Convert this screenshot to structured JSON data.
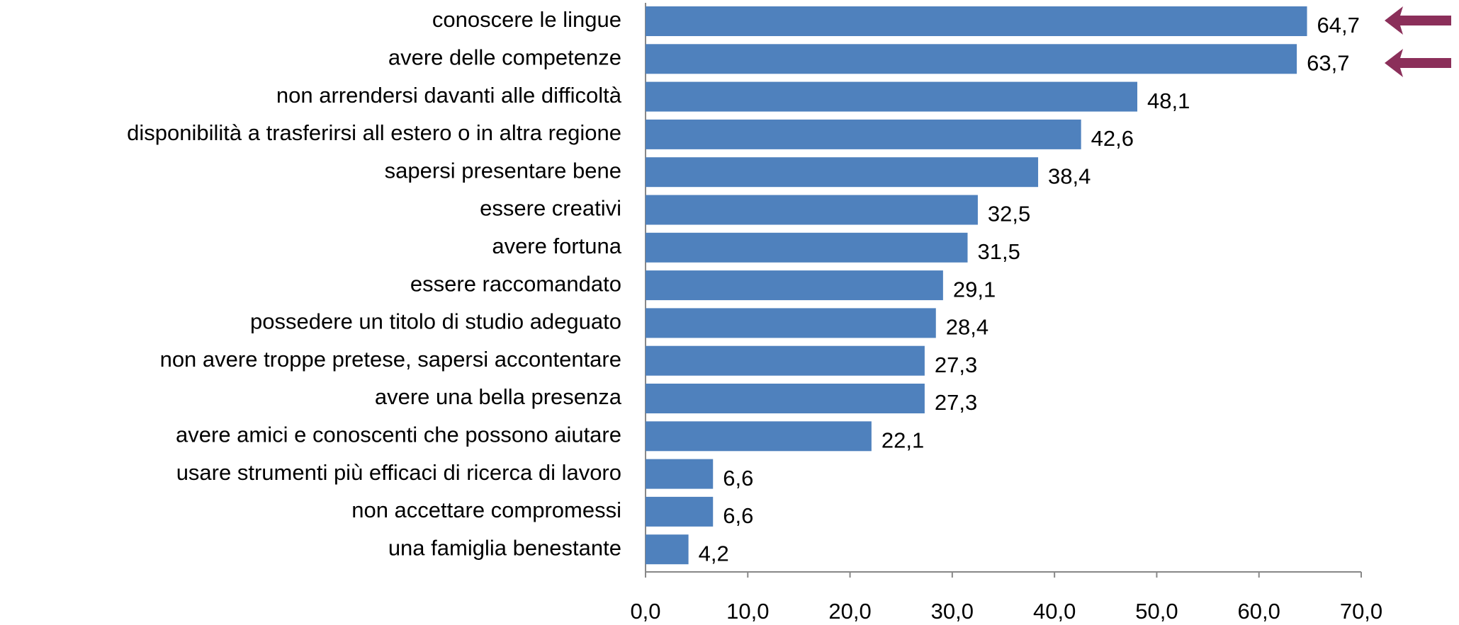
{
  "chart_data": {
    "type": "bar",
    "orientation": "horizontal",
    "categories": [
      "conoscere le lingue",
      "avere delle competenze",
      "non arrendersi davanti alle difficoltà",
      "disponibilità a trasferirsi all estero o in altra regione",
      "sapersi presentare bene",
      "essere creativi",
      "avere fortuna",
      "essere raccomandato",
      "possedere un titolo di studio adeguato",
      "non avere troppe pretese, sapersi accontentare",
      "avere una bella presenza",
      "avere amici e conoscenti che possono aiutare",
      "usare strumenti più efficaci di ricerca di lavoro",
      "non accettare compromessi",
      "una famiglia benestante"
    ],
    "values": [
      64.7,
      63.7,
      48.1,
      42.6,
      38.4,
      32.5,
      31.5,
      29.1,
      28.4,
      27.3,
      27.3,
      22.1,
      6.6,
      6.6,
      4.2
    ],
    "value_labels": [
      "64,7",
      "63,7",
      "48,1",
      "42,6",
      "38,4",
      "32,5",
      "31,5",
      "29,1",
      "28,4",
      "27,3",
      "27,3",
      "22,1",
      "6,6",
      "6,6",
      "4,2"
    ],
    "color": "#4f81bd",
    "xlim": [
      0,
      70
    ],
    "xticks": [
      {
        "value": 0,
        "label": "0,0"
      },
      {
        "value": 10,
        "label": "10,0"
      },
      {
        "value": 20,
        "label": "20,0"
      },
      {
        "value": 30,
        "label": "30,0"
      },
      {
        "value": 40,
        "label": "40,0"
      },
      {
        "value": 50,
        "label": "50,0"
      },
      {
        "value": 60,
        "label": "60,0"
      },
      {
        "value": 70,
        "label": "70,0"
      }
    ],
    "grid": false
  }
}
